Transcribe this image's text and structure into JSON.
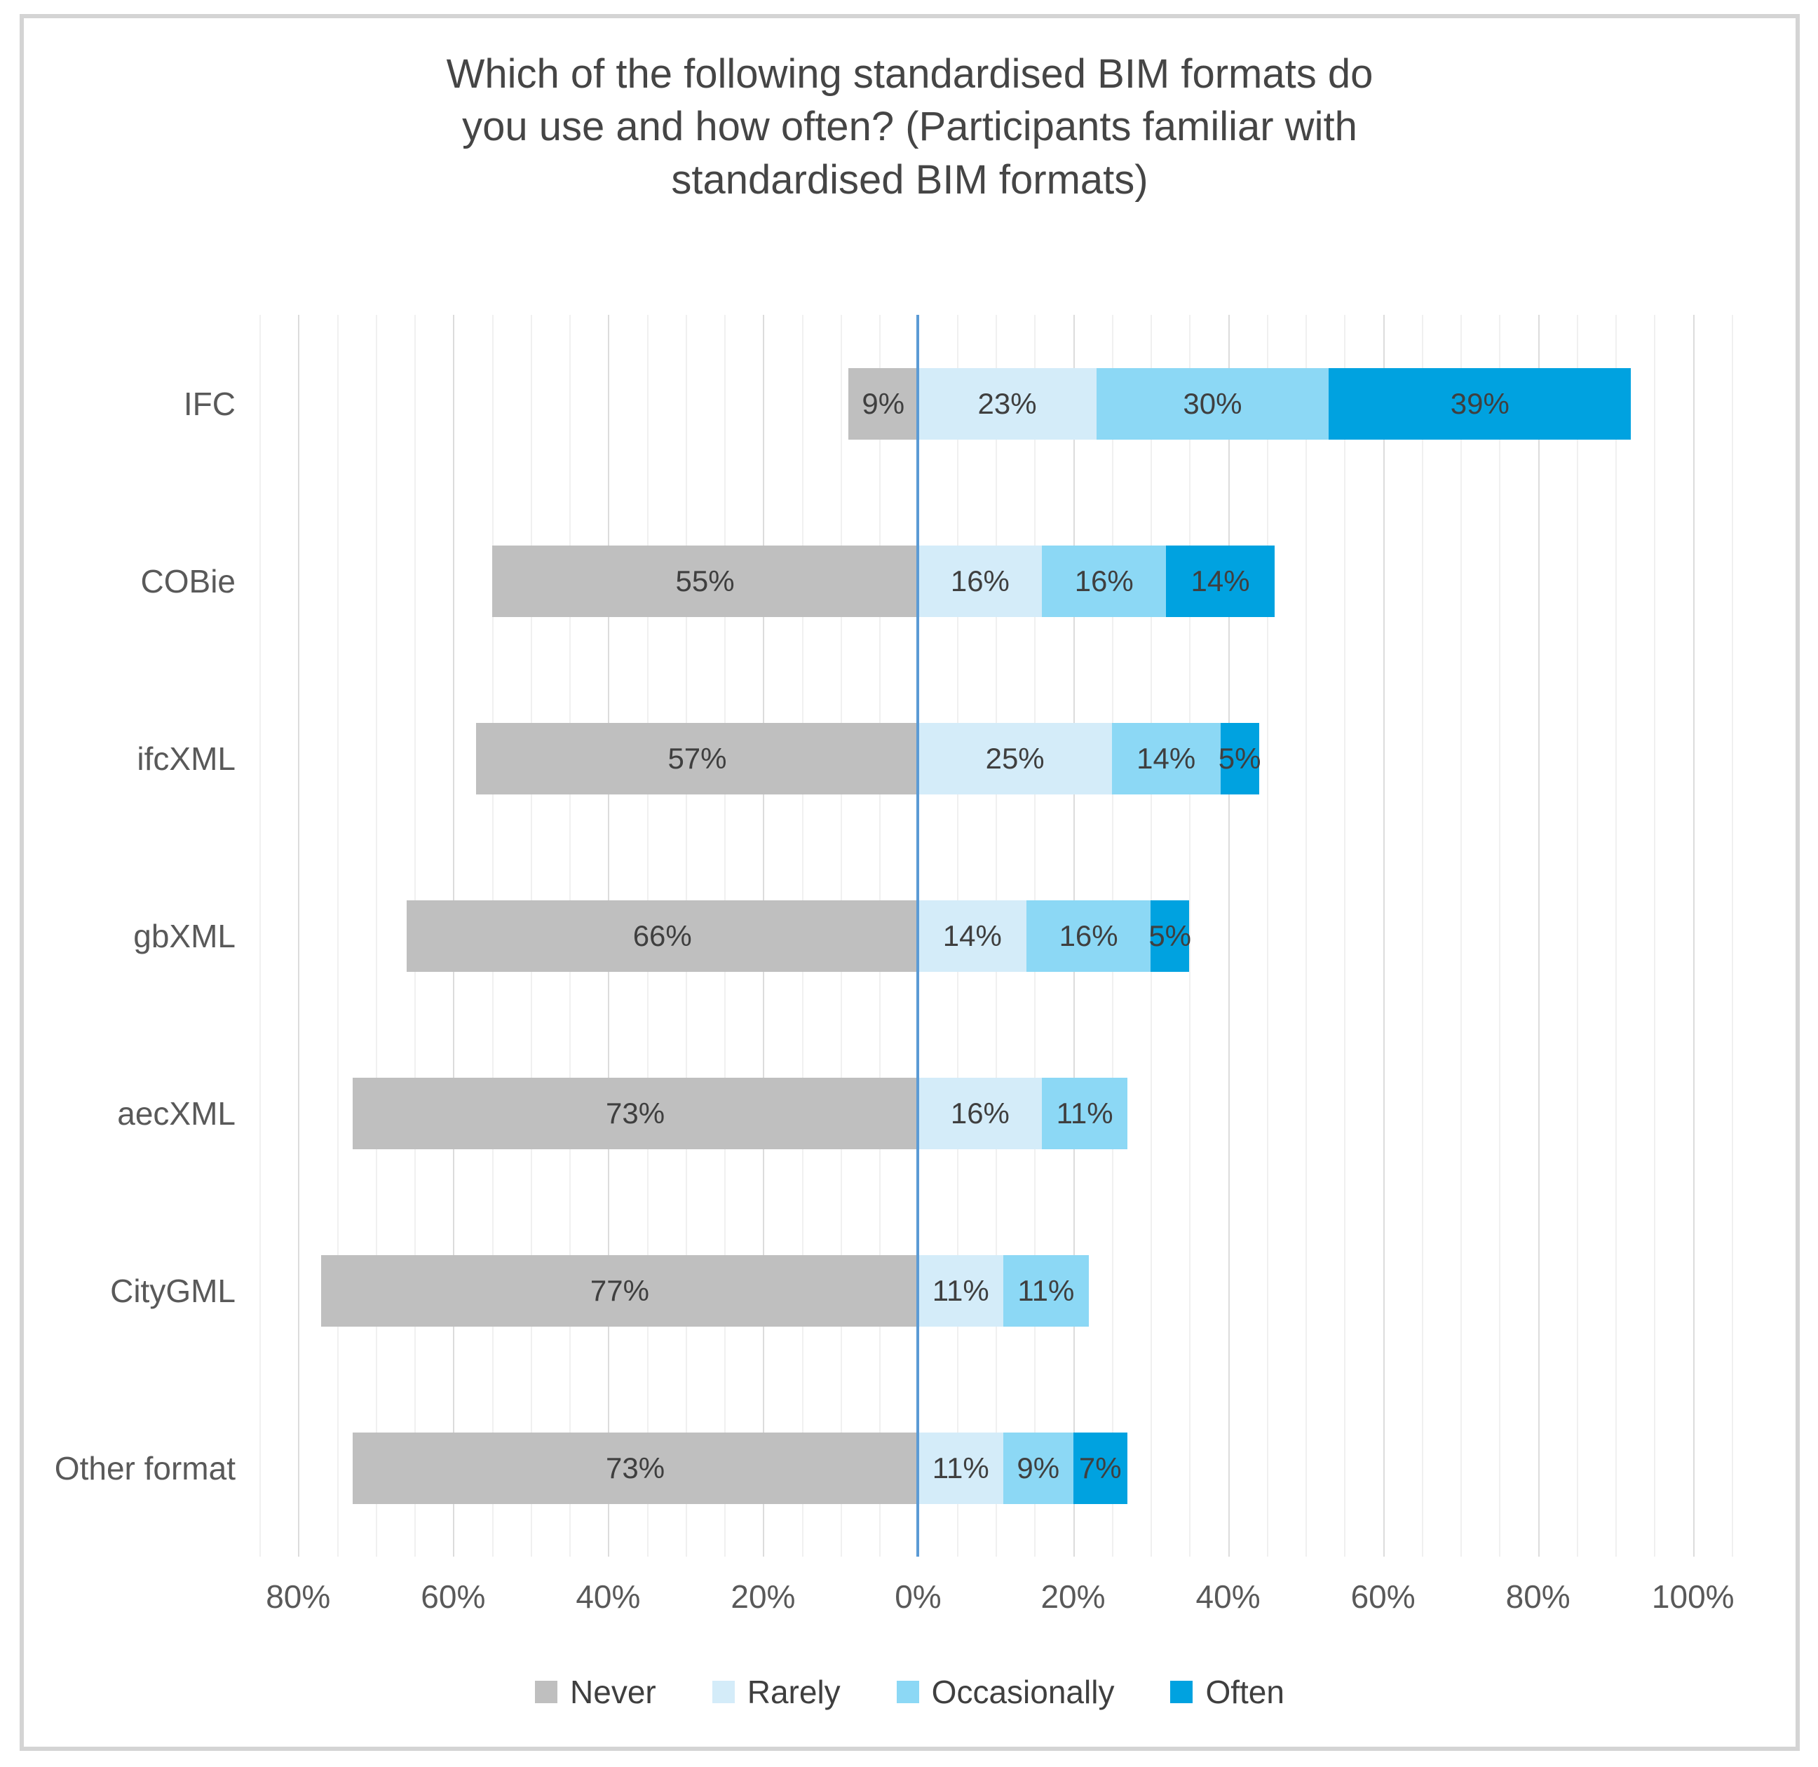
{
  "chart_data": {
    "type": "bar",
    "variant": "diverging-stacked-horizontal",
    "title": "Which of the following standardised BIM formats do you use and how often? (Participants familiar with standardised BIM formats)",
    "title_lines": [
      "Which of the following standardised BIM formats do",
      "you use and how often? (Participants familiar with",
      "standardised BIM formats)"
    ],
    "categories": [
      "IFC",
      "COBie",
      "ifcXML",
      "gbXML",
      "aecXML",
      "CityGML",
      "Other format"
    ],
    "series": [
      {
        "name": "Never",
        "color": "#bfbfbf",
        "side": "negative",
        "values": [
          9,
          55,
          57,
          66,
          73,
          77,
          73
        ]
      },
      {
        "name": "Rarely",
        "color": "#d4ecf9",
        "side": "positive",
        "values": [
          23,
          16,
          25,
          14,
          16,
          11,
          11
        ]
      },
      {
        "name": "Occasionally",
        "color": "#8cd8f5",
        "side": "positive",
        "values": [
          30,
          16,
          14,
          16,
          11,
          11,
          9
        ]
      },
      {
        "name": "Often",
        "color": "#00a2e0",
        "side": "positive",
        "values": [
          39,
          14,
          5,
          5,
          0,
          0,
          7
        ]
      }
    ],
    "data_label_suffix": "%",
    "axis": {
      "min": -85,
      "max": 105,
      "minor_grid_step": 5,
      "major_tick_step": 20,
      "tick_values": [
        -80,
        -60,
        -40,
        -20,
        0,
        20,
        40,
        60,
        80,
        100
      ],
      "tick_labels": [
        "80%",
        "60%",
        "40%",
        "20%",
        "0%",
        "20%",
        "40%",
        "60%",
        "80%",
        "100%"
      ]
    },
    "legend": {
      "position": "bottom",
      "entries": [
        "Never",
        "Rarely",
        "Occasionally",
        "Often"
      ]
    },
    "grid": true
  },
  "colors": {
    "never": "#bfbfbf",
    "rarely": "#d4ecf9",
    "occasionally": "#8cd8f5",
    "often": "#00a2e0",
    "zero_axis_line": "#5b9bd5",
    "grid_major": "#dcdcdc",
    "grid_minor": "#f0f0f0",
    "title_text": "#454545",
    "data_label_text": "#3f3f3f",
    "axis_label_text": "#595959",
    "frame_border": "#d4d4d4"
  }
}
